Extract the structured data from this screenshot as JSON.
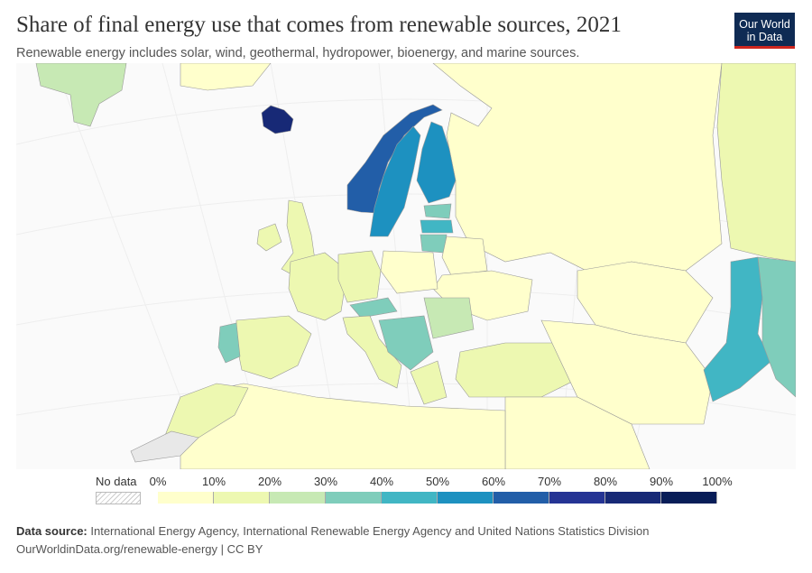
{
  "header": {
    "title": "Share of final energy use that comes from renewable sources, 2021",
    "subtitle": "Renewable energy includes solar, wind, geothermal, hydropower, bioenergy, and marine sources.",
    "logo_line1": "Our World",
    "logo_line2": "in Data"
  },
  "legend": {
    "no_data_label": "No data",
    "ticks": [
      "0%",
      "10%",
      "20%",
      "30%",
      "40%",
      "50%",
      "60%",
      "70%",
      "80%",
      "90%",
      "100%"
    ],
    "colors": [
      "#ffffcc",
      "#edf8b1",
      "#c7e9b4",
      "#7fcdbb",
      "#41b6c4",
      "#1d91c0",
      "#225ea8",
      "#253494",
      "#172976",
      "#081d58"
    ]
  },
  "map": {
    "ocean_color": "#fafafa",
    "no_data_color": "#e8e8e8",
    "border_color": "#999999"
  },
  "footer": {
    "source_label": "Data source:",
    "source_text": "International Energy Agency, International Renewable Energy Agency and United Nations Statistics Division",
    "url_license": "OurWorldinData.org/renewable-energy | CC BY"
  }
}
